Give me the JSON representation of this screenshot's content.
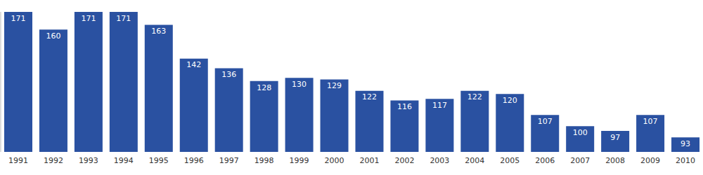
{
  "chart_data": {
    "type": "bar",
    "categories": [
      "1991",
      "1992",
      "1993",
      "1994",
      "1995",
      "1996",
      "1997",
      "1998",
      "1999",
      "2000",
      "2001",
      "2002",
      "2003",
      "2004",
      "2005",
      "2006",
      "2007",
      "2008",
      "2009",
      "2010"
    ],
    "values": [
      171,
      160,
      171,
      171,
      163,
      142,
      136,
      128,
      130,
      129,
      122,
      116,
      117,
      122,
      120,
      107,
      100,
      97,
      107,
      93
    ],
    "color": "#2a51a1",
    "ylim": [
      84,
      171
    ],
    "grid": false,
    "data_labels": true,
    "tick_labels": "x"
  }
}
